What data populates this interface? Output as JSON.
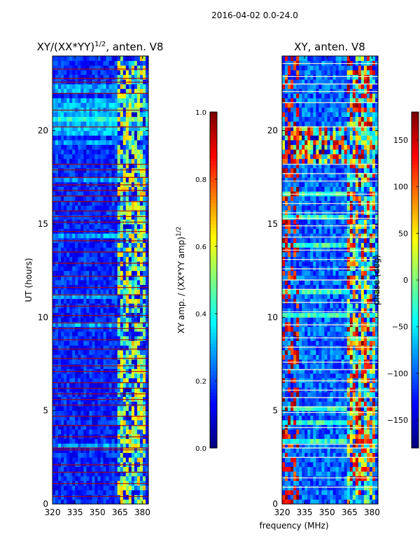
{
  "suptitle": "2016-04-02 0.0-24.0",
  "colors": {
    "jet": [
      "#00007f",
      "#0000ff",
      "#007fff",
      "#00ffff",
      "#7fff7f",
      "#ffff00",
      "#ff7f00",
      "#ff0000",
      "#7f0000"
    ],
    "flag_line": "#b00000",
    "gap_line": "#ffffd0"
  },
  "chart_data": [
    {
      "type": "heatmap",
      "name": "amplitude-panel",
      "title": "XY/(XX*YY)",
      "title_sup": "1/2",
      "title_suffix": ", anten. V8",
      "xlabel": "",
      "ylabel": "UT (hours)",
      "xlim": [
        320,
        384
      ],
      "ylim": [
        0,
        24
      ],
      "xticks": [
        320,
        335,
        350,
        365,
        380
      ],
      "yticks": [
        0,
        5,
        10,
        15,
        20
      ],
      "x_high_band": [
        363,
        382
      ],
      "flagged_hours": [
        0.4,
        1.1,
        1.7,
        2.1,
        2.9,
        3.0,
        3.6,
        4.2,
        4.7,
        5.3,
        5.6,
        5.9,
        6.2,
        6.5,
        7.1,
        7.4,
        7.8,
        8.3,
        8.8,
        9.4,
        9.7,
        10.1,
        10.6,
        11.2,
        11.6,
        12.2,
        12.9,
        13.5,
        14.1,
        14.6,
        15.1,
        15.4,
        15.7,
        16.2,
        16.5,
        16.8,
        17.1,
        17.5,
        17.9,
        18.2,
        20.2,
        21.1,
        22.0,
        22.6,
        22.8,
        23.3
      ],
      "colorbar": {
        "label": "XY amp. / (XX*YY amp)",
        "label_sup": "1/2",
        "range": [
          0.0,
          1.0
        ],
        "ticks": [
          "0.0",
          "0.2",
          "0.4",
          "0.6",
          "0.8",
          "1.0"
        ]
      }
    },
    {
      "type": "heatmap",
      "name": "phase-panel",
      "title": "XY, anten. V8",
      "xlabel": "frequency (MHz)",
      "ylabel": "",
      "xlim": [
        320,
        384
      ],
      "ylim": [
        0,
        24
      ],
      "xticks": [
        320,
        335,
        350,
        365,
        380
      ],
      "yticks": [
        0,
        5,
        10,
        15,
        20
      ],
      "x_high_band": [
        363,
        382
      ],
      "flagged_hours": [
        0.9,
        1.4,
        2.5,
        3.0,
        3.2,
        4.1,
        4.9,
        5.2,
        5.7,
        6.1,
        6.6,
        7.2,
        7.6,
        8.4,
        8.9,
        9.6,
        10.3,
        10.8,
        11.5,
        12.0,
        12.6,
        13.1,
        13.6,
        14.3,
        14.9,
        15.3,
        15.6,
        16.1,
        16.6,
        17.3,
        17.7,
        18.2,
        20.2,
        21.5,
        22.1,
        22.5,
        22.9,
        23.6
      ],
      "colorbar": {
        "label": "phase (deg)",
        "range": [
          -180,
          180
        ],
        "ticks": [
          "−150",
          "−100",
          "−50",
          "0",
          "50",
          "100",
          "150"
        ],
        "tick_values": [
          -150,
          -100,
          -50,
          0,
          50,
          100,
          150
        ]
      }
    }
  ]
}
